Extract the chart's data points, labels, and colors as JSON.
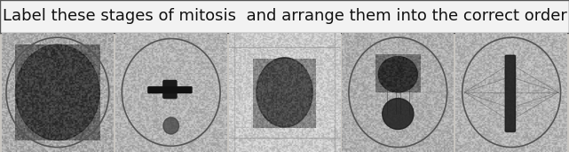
{
  "title": "Label these stages of mitosis  and arrange them into the correct order",
  "title_fontsize": 13,
  "title_box_color": "#f2f2f2",
  "title_border_color": "#555555",
  "figure_bg": "#c8c5c0",
  "num_panels": 5,
  "fig_width": 6.41,
  "fig_height": 1.71,
  "dpi": 100
}
